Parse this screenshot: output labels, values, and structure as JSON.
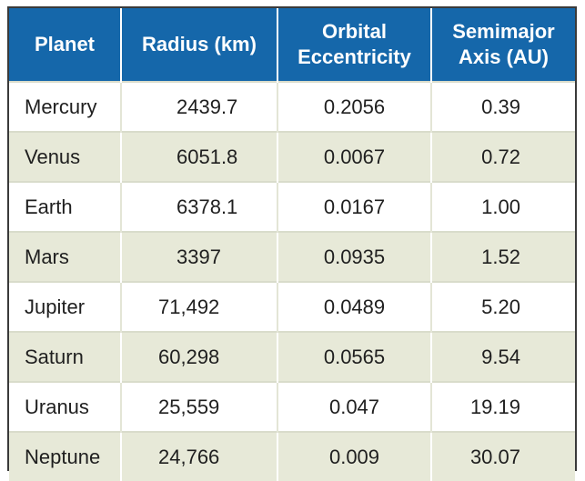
{
  "table": {
    "headers": {
      "planet": "Planet",
      "radius": "Radius (km)",
      "ecc_line1": "Orbital",
      "ecc_line2": "Eccentricity",
      "axis_line1": "Semimajor",
      "axis_line2": "Axis (AU)"
    },
    "rows": [
      {
        "planet": "Mercury",
        "radius": "2439.7",
        "eccentricity": "0.2056",
        "axis": "0.39"
      },
      {
        "planet": "Venus",
        "radius": "6051.8",
        "eccentricity": "0.0067",
        "axis": "0.72"
      },
      {
        "planet": "Earth",
        "radius": "6378.1",
        "eccentricity": "0.0167",
        "axis": "1.00"
      },
      {
        "planet": "Mars",
        "radius": "3397",
        "eccentricity": "0.0935",
        "axis": "1.52"
      },
      {
        "planet": "Jupiter",
        "radius": "71,492",
        "eccentricity": "0.0489",
        "axis": "5.20"
      },
      {
        "planet": "Saturn",
        "radius": "60,298",
        "eccentricity": "0.0565",
        "axis": "9.54"
      },
      {
        "planet": "Uranus",
        "radius": "25,559",
        "eccentricity": "0.047",
        "axis": "19.19"
      },
      {
        "planet": "Neptune",
        "radius": "24,766",
        "eccentricity": "0.009",
        "axis": "30.07"
      }
    ]
  },
  "colors": {
    "header_bg": "#1567aa",
    "header_text": "#ffffff",
    "stripe_bg": "#e7e9d8",
    "row_bg": "#ffffff"
  }
}
